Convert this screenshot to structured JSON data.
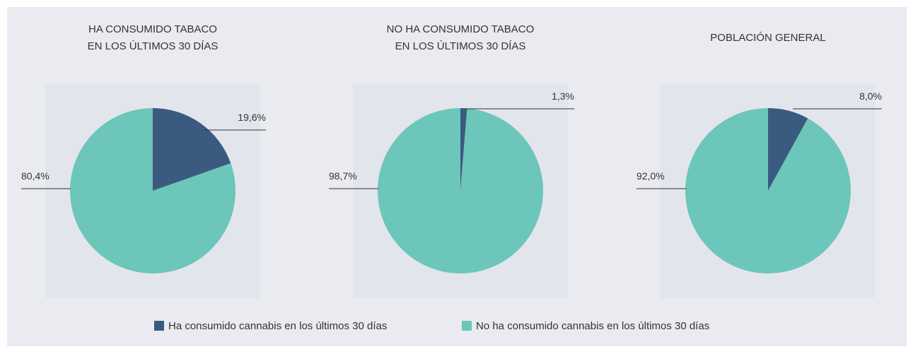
{
  "chart_data": [
    {
      "type": "pie",
      "title_lines": [
        "HA CONSUMIDO TABACO",
        "EN LOS ÚLTIMOS 30 DÍAS"
      ],
      "categories": [
        "Ha consumido cannabis en los últimos 30 días",
        "No ha consumido cannabis en los últimos 30 días"
      ],
      "values": [
        19.6,
        80.4
      ],
      "labels": [
        "19,6%",
        "80,4%"
      ]
    },
    {
      "type": "pie",
      "title_lines": [
        "NO HA CONSUMIDO TABACO",
        "EN LOS ÚLTIMOS 30 DÍAS"
      ],
      "categories": [
        "Ha consumido cannabis en los últimos 30 días",
        "No ha consumido cannabis en los últimos 30 días"
      ],
      "values": [
        1.3,
        98.7
      ],
      "labels": [
        "1,3%",
        "98,7%"
      ]
    },
    {
      "type": "pie",
      "title_lines": [
        "POBLACIÓN GENERAL"
      ],
      "categories": [
        "Ha consumido cannabis en los últimos 30 días",
        "No ha consumido cannabis en los últimos 30 días"
      ],
      "values": [
        8.0,
        92.0
      ],
      "labels": [
        "8,0%",
        "92,0%"
      ]
    }
  ],
  "legend": [
    {
      "label": "Ha consumido cannabis en los últimos 30 días",
      "color": "#3a5a80"
    },
    {
      "label": "No ha consumido cannabis en los últimos 30 días",
      "color": "#6cc6b9"
    }
  ],
  "colors": {
    "background": "#e9ebf1",
    "panel": "#e3e5ed",
    "consumed": "#3a5a80",
    "not_consumed": "#6cc6b9"
  }
}
